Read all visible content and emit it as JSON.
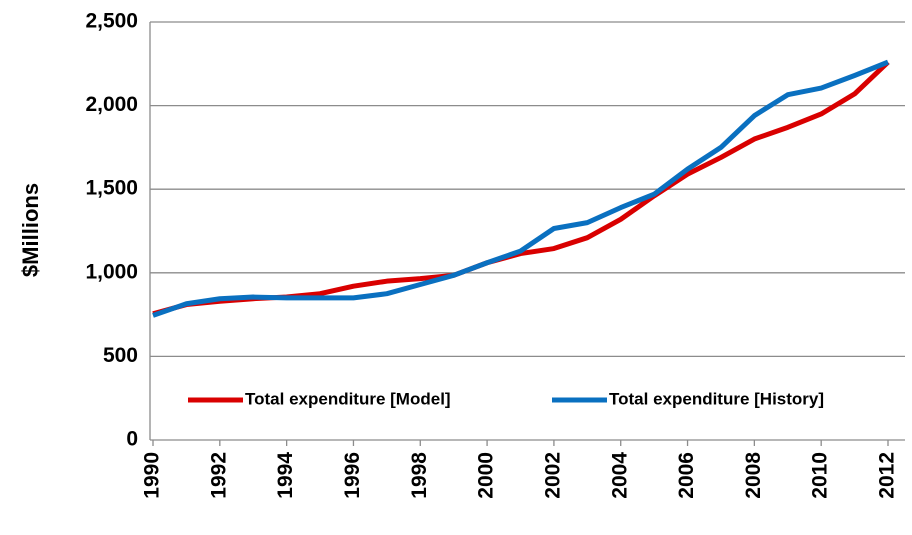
{
  "chart_data": {
    "type": "line",
    "y_label": "$Millions",
    "x": [
      1990,
      1991,
      1992,
      1993,
      1994,
      1995,
      1996,
      1997,
      1998,
      1999,
      2000,
      2001,
      2002,
      2003,
      2004,
      2005,
      2006,
      2007,
      2008,
      2009,
      2010,
      2011,
      2012
    ],
    "xlim": [
      1990,
      2012
    ],
    "xticks": [
      1990,
      1992,
      1994,
      1996,
      1998,
      2000,
      2002,
      2004,
      2006,
      2008,
      2010,
      2012
    ],
    "ylim": [
      0,
      2500
    ],
    "yticks": [
      0,
      {
        "value": 500,
        "label": "500"
      },
      {
        "value": 1000,
        "label": "1,000"
      },
      {
        "value": 1500,
        "label": "1,500"
      },
      {
        "value": 2000,
        "label": "2,000"
      },
      {
        "value": 2500,
        "label": "2,500"
      }
    ],
    "grid": true,
    "legend": "bottom",
    "series": [
      {
        "name": "Total expenditure [Model]",
        "color": "#d90000",
        "values": [
          755,
          810,
          830,
          845,
          855,
          875,
          920,
          950,
          965,
          985,
          1060,
          1115,
          1145,
          1210,
          1320,
          1460,
          1590,
          1690,
          1800,
          1870,
          1950,
          2070,
          2260
        ]
      },
      {
        "name": "Total expenditure [History]",
        "color": "#0a70c0",
        "values": [
          745,
          815,
          845,
          855,
          850,
          850,
          850,
          875,
          930,
          985,
          1060,
          1130,
          1265,
          1300,
          1390,
          1470,
          1620,
          1750,
          1940,
          2065,
          2105,
          2180,
          2260
        ]
      }
    ]
  }
}
